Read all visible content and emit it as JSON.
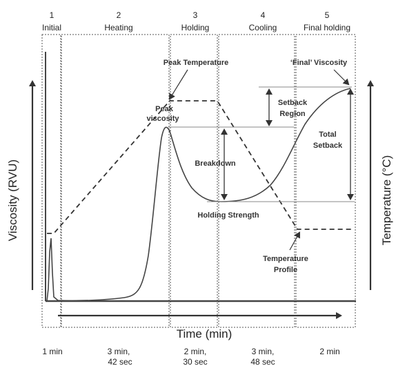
{
  "stages": [
    {
      "num": "1",
      "name": "Initial",
      "duration": [
        "1 min"
      ]
    },
    {
      "num": "2",
      "name": "Heating",
      "duration": [
        "3 min,",
        "42 sec"
      ]
    },
    {
      "num": "3",
      "name": "Holding",
      "duration": [
        "2 min,",
        "30 sec"
      ]
    },
    {
      "num": "4",
      "name": "Cooling",
      "duration": [
        "3 min,",
        "48 sec"
      ]
    },
    {
      "num": "5",
      "name": "Final holding",
      "duration": [
        "2 min"
      ]
    }
  ],
  "annotations": {
    "peak_temperature": "Peak Temperature",
    "final_viscosity": "‘Final’ Viscosity",
    "peak_viscosity_1": "Peak",
    "peak_viscosity_2": "viscosity",
    "setback_region_1": "Setback",
    "setback_region_2": "Region",
    "total_setback_1": "Total",
    "total_setback_2": "Setback",
    "breakdown": "Breakdown",
    "holding_strength": "Holding Strength",
    "temperature_profile_1": "Temperature",
    "temperature_profile_2": "Profile"
  },
  "axes": {
    "x_label": "Time (min)",
    "y_left_label": "Viscosity (RVU)",
    "y_right_label": "Temperature (°C)"
  },
  "colors": {
    "curve": "#444444",
    "box": "#555555"
  }
}
